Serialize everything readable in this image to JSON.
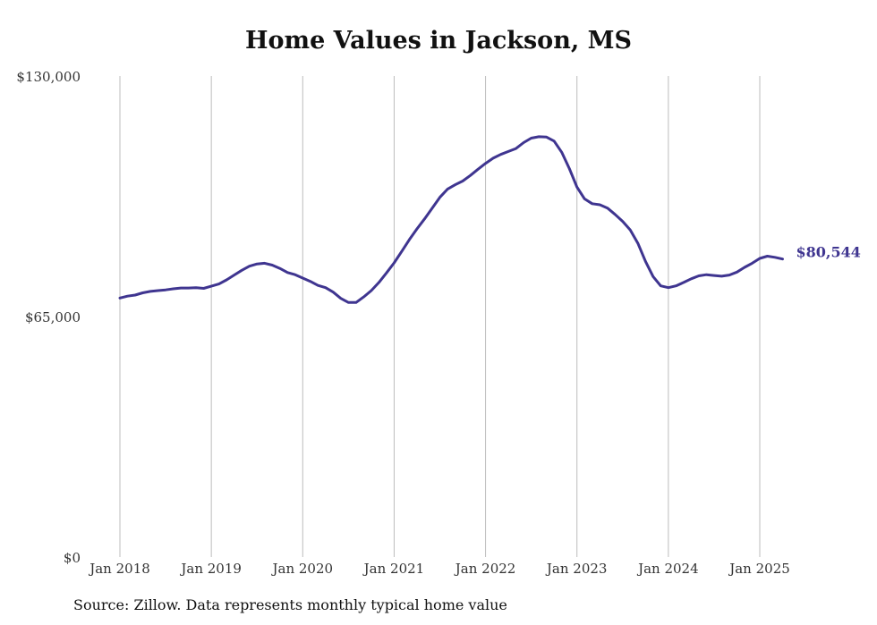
{
  "chart_data": {
    "type": "line",
    "title": "Home Values in Jackson, MS",
    "source": "Source: Zillow. Data represents monthly typical home value",
    "xlabel": "",
    "ylabel": "",
    "ylim": [
      0,
      130000
    ],
    "y_ticks": [
      {
        "value": 0,
        "label": "$0"
      },
      {
        "value": 65000,
        "label": "$65,000"
      },
      {
        "value": 130000,
        "label": "$130,000"
      }
    ],
    "x_ticks": [
      {
        "value": "2018-01",
        "label": "Jan 2018"
      },
      {
        "value": "2019-01",
        "label": "Jan 2019"
      },
      {
        "value": "2020-01",
        "label": "Jan 2020"
      },
      {
        "value": "2021-01",
        "label": "Jan 2021"
      },
      {
        "value": "2022-01",
        "label": "Jan 2022"
      },
      {
        "value": "2023-01",
        "label": "Jan 2023"
      },
      {
        "value": "2024-01",
        "label": "Jan 2024"
      },
      {
        "value": "2025-01",
        "label": "Jan 2025"
      }
    ],
    "grid": "vertical",
    "end_label": "$80,544",
    "series": [
      {
        "color": "#3f3590",
        "x": [
          "2018-01",
          "2018-02",
          "2018-03",
          "2018-04",
          "2018-05",
          "2018-06",
          "2018-07",
          "2018-08",
          "2018-09",
          "2018-10",
          "2018-11",
          "2018-12",
          "2019-01",
          "2019-02",
          "2019-03",
          "2019-04",
          "2019-05",
          "2019-06",
          "2019-07",
          "2019-08",
          "2019-09",
          "2019-10",
          "2019-11",
          "2019-12",
          "2020-01",
          "2020-02",
          "2020-03",
          "2020-04",
          "2020-05",
          "2020-06",
          "2020-07",
          "2020-08",
          "2020-09",
          "2020-10",
          "2020-11",
          "2020-12",
          "2021-01",
          "2021-02",
          "2021-03",
          "2021-04",
          "2021-05",
          "2021-06",
          "2021-07",
          "2021-08",
          "2021-09",
          "2021-10",
          "2021-11",
          "2021-12",
          "2022-01",
          "2022-02",
          "2022-03",
          "2022-04",
          "2022-05",
          "2022-06",
          "2022-07",
          "2022-08",
          "2022-09",
          "2022-10",
          "2022-11",
          "2022-12",
          "2023-01",
          "2023-02",
          "2023-03",
          "2023-04",
          "2023-05",
          "2023-06",
          "2023-07",
          "2023-08",
          "2023-09",
          "2023-10",
          "2023-11",
          "2023-12",
          "2024-01",
          "2024-02",
          "2024-03",
          "2024-04",
          "2024-05",
          "2024-06",
          "2024-07",
          "2024-08",
          "2024-09",
          "2024-10",
          "2024-11",
          "2024-12",
          "2025-01",
          "2025-02",
          "2025-03",
          "2025-04"
        ],
        "values": [
          70000,
          70500,
          70800,
          71400,
          71800,
          72000,
          72200,
          72500,
          72700,
          72700,
          72800,
          72600,
          73200,
          73800,
          74900,
          76200,
          77500,
          78600,
          79200,
          79400,
          78900,
          78000,
          76900,
          76300,
          75400,
          74500,
          73400,
          72800,
          71600,
          69900,
          68800,
          68800,
          70300,
          72000,
          74200,
          76800,
          79500,
          82600,
          85800,
          88700,
          91400,
          94300,
          97200,
          99400,
          100600,
          101600,
          103100,
          104800,
          106400,
          107800,
          108800,
          109600,
          110400,
          112000,
          113200,
          113600,
          113500,
          112400,
          109400,
          105000,
          100000,
          96800,
          95500,
          95200,
          94300,
          92600,
          90700,
          88400,
          84800,
          79900,
          75800,
          73300,
          72800,
          73300,
          74200,
          75200,
          76000,
          76300,
          76100,
          75900,
          76200,
          77000,
          78300,
          79400,
          80700,
          81300,
          81000,
          80544
        ]
      }
    ]
  }
}
